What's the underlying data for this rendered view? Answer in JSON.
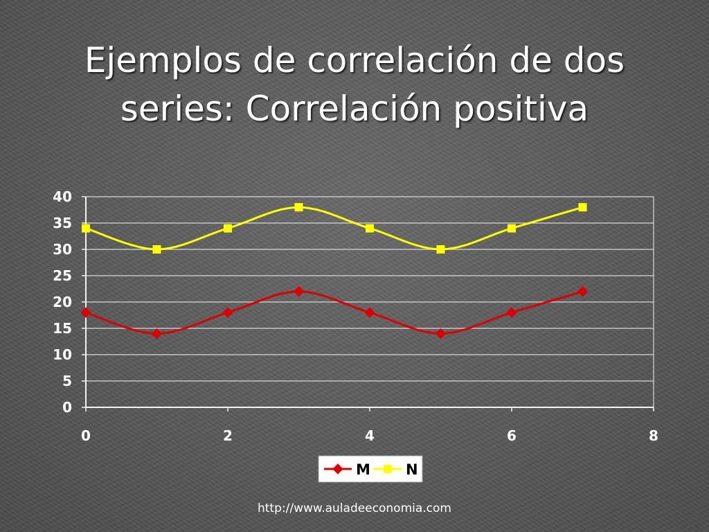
{
  "title_lines": [
    "Ejemplos de correlación de dos",
    "series: Correlación positiva"
  ],
  "footer": "http://www.auladeeconomia.com",
  "chart_data": {
    "type": "line",
    "title": "Ejemplos de correlación de dos series: Correlación positiva",
    "xlabel": "",
    "ylabel": "",
    "xlim": [
      0,
      8
    ],
    "ylim": [
      0,
      40
    ],
    "xticks": [
      0,
      2,
      4,
      6,
      8
    ],
    "yticks": [
      0,
      5,
      10,
      15,
      20,
      25,
      30,
      35,
      40
    ],
    "grid": true,
    "legend": "bottom",
    "smooth": true,
    "series": [
      {
        "name": "M",
        "color": "#dd0000",
        "marker": "diamond",
        "x": [
          0,
          1,
          2,
          3,
          4,
          5,
          6,
          7
        ],
        "values": [
          18,
          14,
          18,
          22,
          18,
          14,
          18,
          22
        ]
      },
      {
        "name": "N",
        "color": "#ffff00",
        "marker": "square",
        "x": [
          0,
          1,
          2,
          3,
          4,
          5,
          6,
          7
        ],
        "values": [
          34,
          30,
          34,
          38,
          34,
          30,
          34,
          38
        ]
      }
    ]
  },
  "colors": {
    "grid": "#d8d8d8",
    "text": "#ffffff",
    "legend_bg": "#ffffff"
  }
}
